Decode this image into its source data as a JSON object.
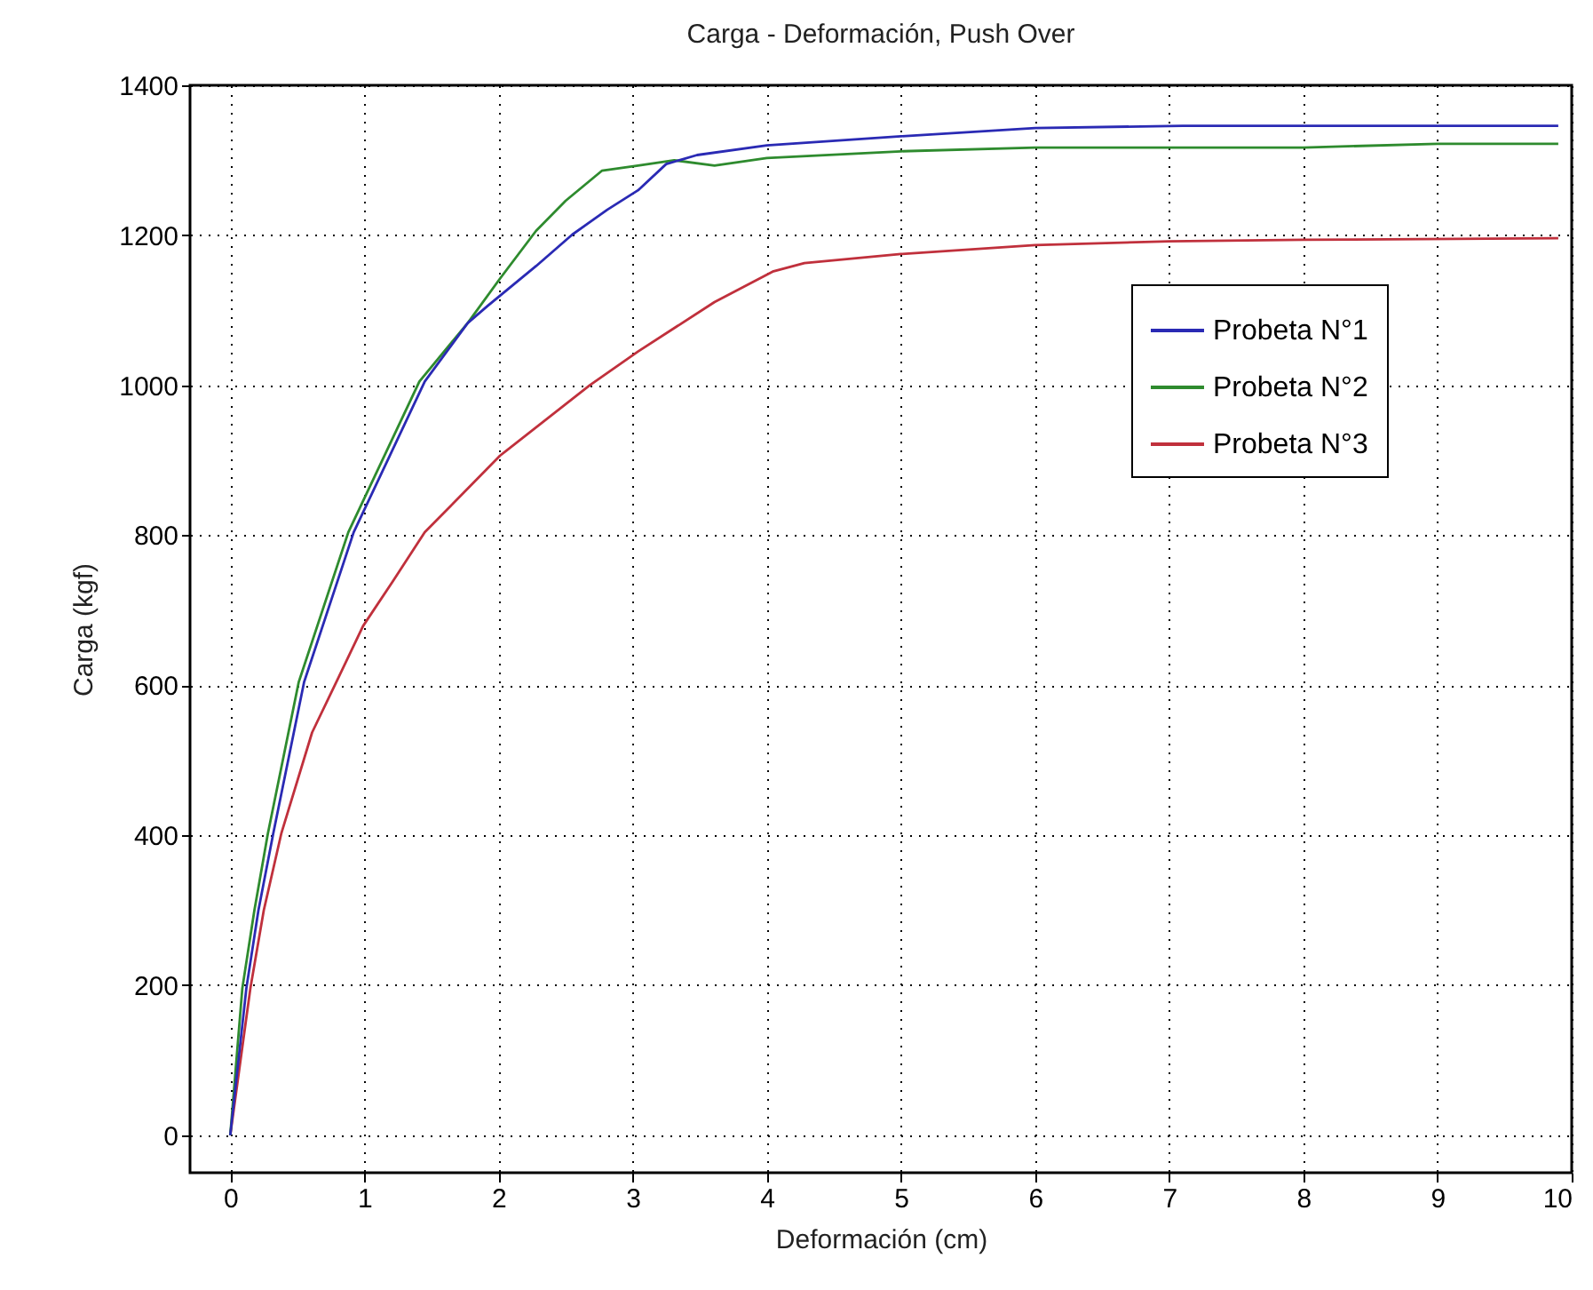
{
  "chart_data": {
    "type": "line",
    "title": "Carga - Deformación, Push Over",
    "xlabel": "Deformación (cm)",
    "ylabel": "Carga (kgf)",
    "xlim": [
      -0.3,
      10
    ],
    "xticks": [
      0,
      1,
      2,
      3,
      4,
      5,
      6,
      7,
      8,
      9,
      10
    ],
    "ylim": [
      -50,
      1400
    ],
    "yticks": [
      0,
      200,
      400,
      600,
      800,
      {
        "value": 1000,
        "label": "1000"
      },
      {
        "value": 1200,
        "label": "1200"
      },
      {
        "value": 1400,
        "label": "1400"
      }
    ],
    "grid": true,
    "legend": "top right",
    "line_style": "solid",
    "marker": "none",
    "series": [
      {
        "name": "Probeta N°1",
        "color": "#2a2ab4",
        "x": [
          0,
          0.12,
          0.21,
          0.32,
          0.55,
          0.92,
          1.45,
          1.77,
          1.92,
          2.28,
          2.55,
          2.81,
          3.04,
          3.25,
          3.48,
          4.0,
          5,
          6,
          7.1,
          9.9
        ],
        "values": [
          0,
          196,
          300,
          402,
          604,
          804,
          1005,
          1083,
          1106,
          1159,
          1201,
          1234,
          1260,
          1295,
          1307,
          1320,
          1332,
          1343,
          1346,
          1346
        ]
      },
      {
        "name": "Probeta N°2",
        "color": "#2e8b2e",
        "x": [
          0,
          0.09,
          0.18,
          0.28,
          0.51,
          0.88,
          1.41,
          1.77,
          2.01,
          2.28,
          2.5,
          2.77,
          3.04,
          3.31,
          3.61,
          4.0,
          5,
          6,
          8,
          9,
          9.9
        ],
        "values": [
          0,
          196,
          300,
          402,
          604,
          804,
          1005,
          1083,
          1142,
          1206,
          1246,
          1286,
          1293,
          1300,
          1293,
          1303,
          1312,
          1317,
          1317,
          1322,
          1322
        ]
      },
      {
        "name": "Probeta N°3",
        "color": "#c0303c",
        "x": [
          0,
          0.15,
          0.25,
          0.38,
          0.61,
          0.79,
          0.99,
          1.21,
          1.45,
          2.01,
          2.68,
          3.04,
          3.61,
          4.05,
          4.28,
          5,
          6,
          7,
          8,
          9.9
        ],
        "values": [
          0,
          196,
          300,
          402,
          537,
          604,
          679,
          738,
          804,
          906,
          1000,
          1045,
          1111,
          1152,
          1163,
          1175,
          1187,
          1192,
          1194,
          1196
        ]
      }
    ]
  }
}
